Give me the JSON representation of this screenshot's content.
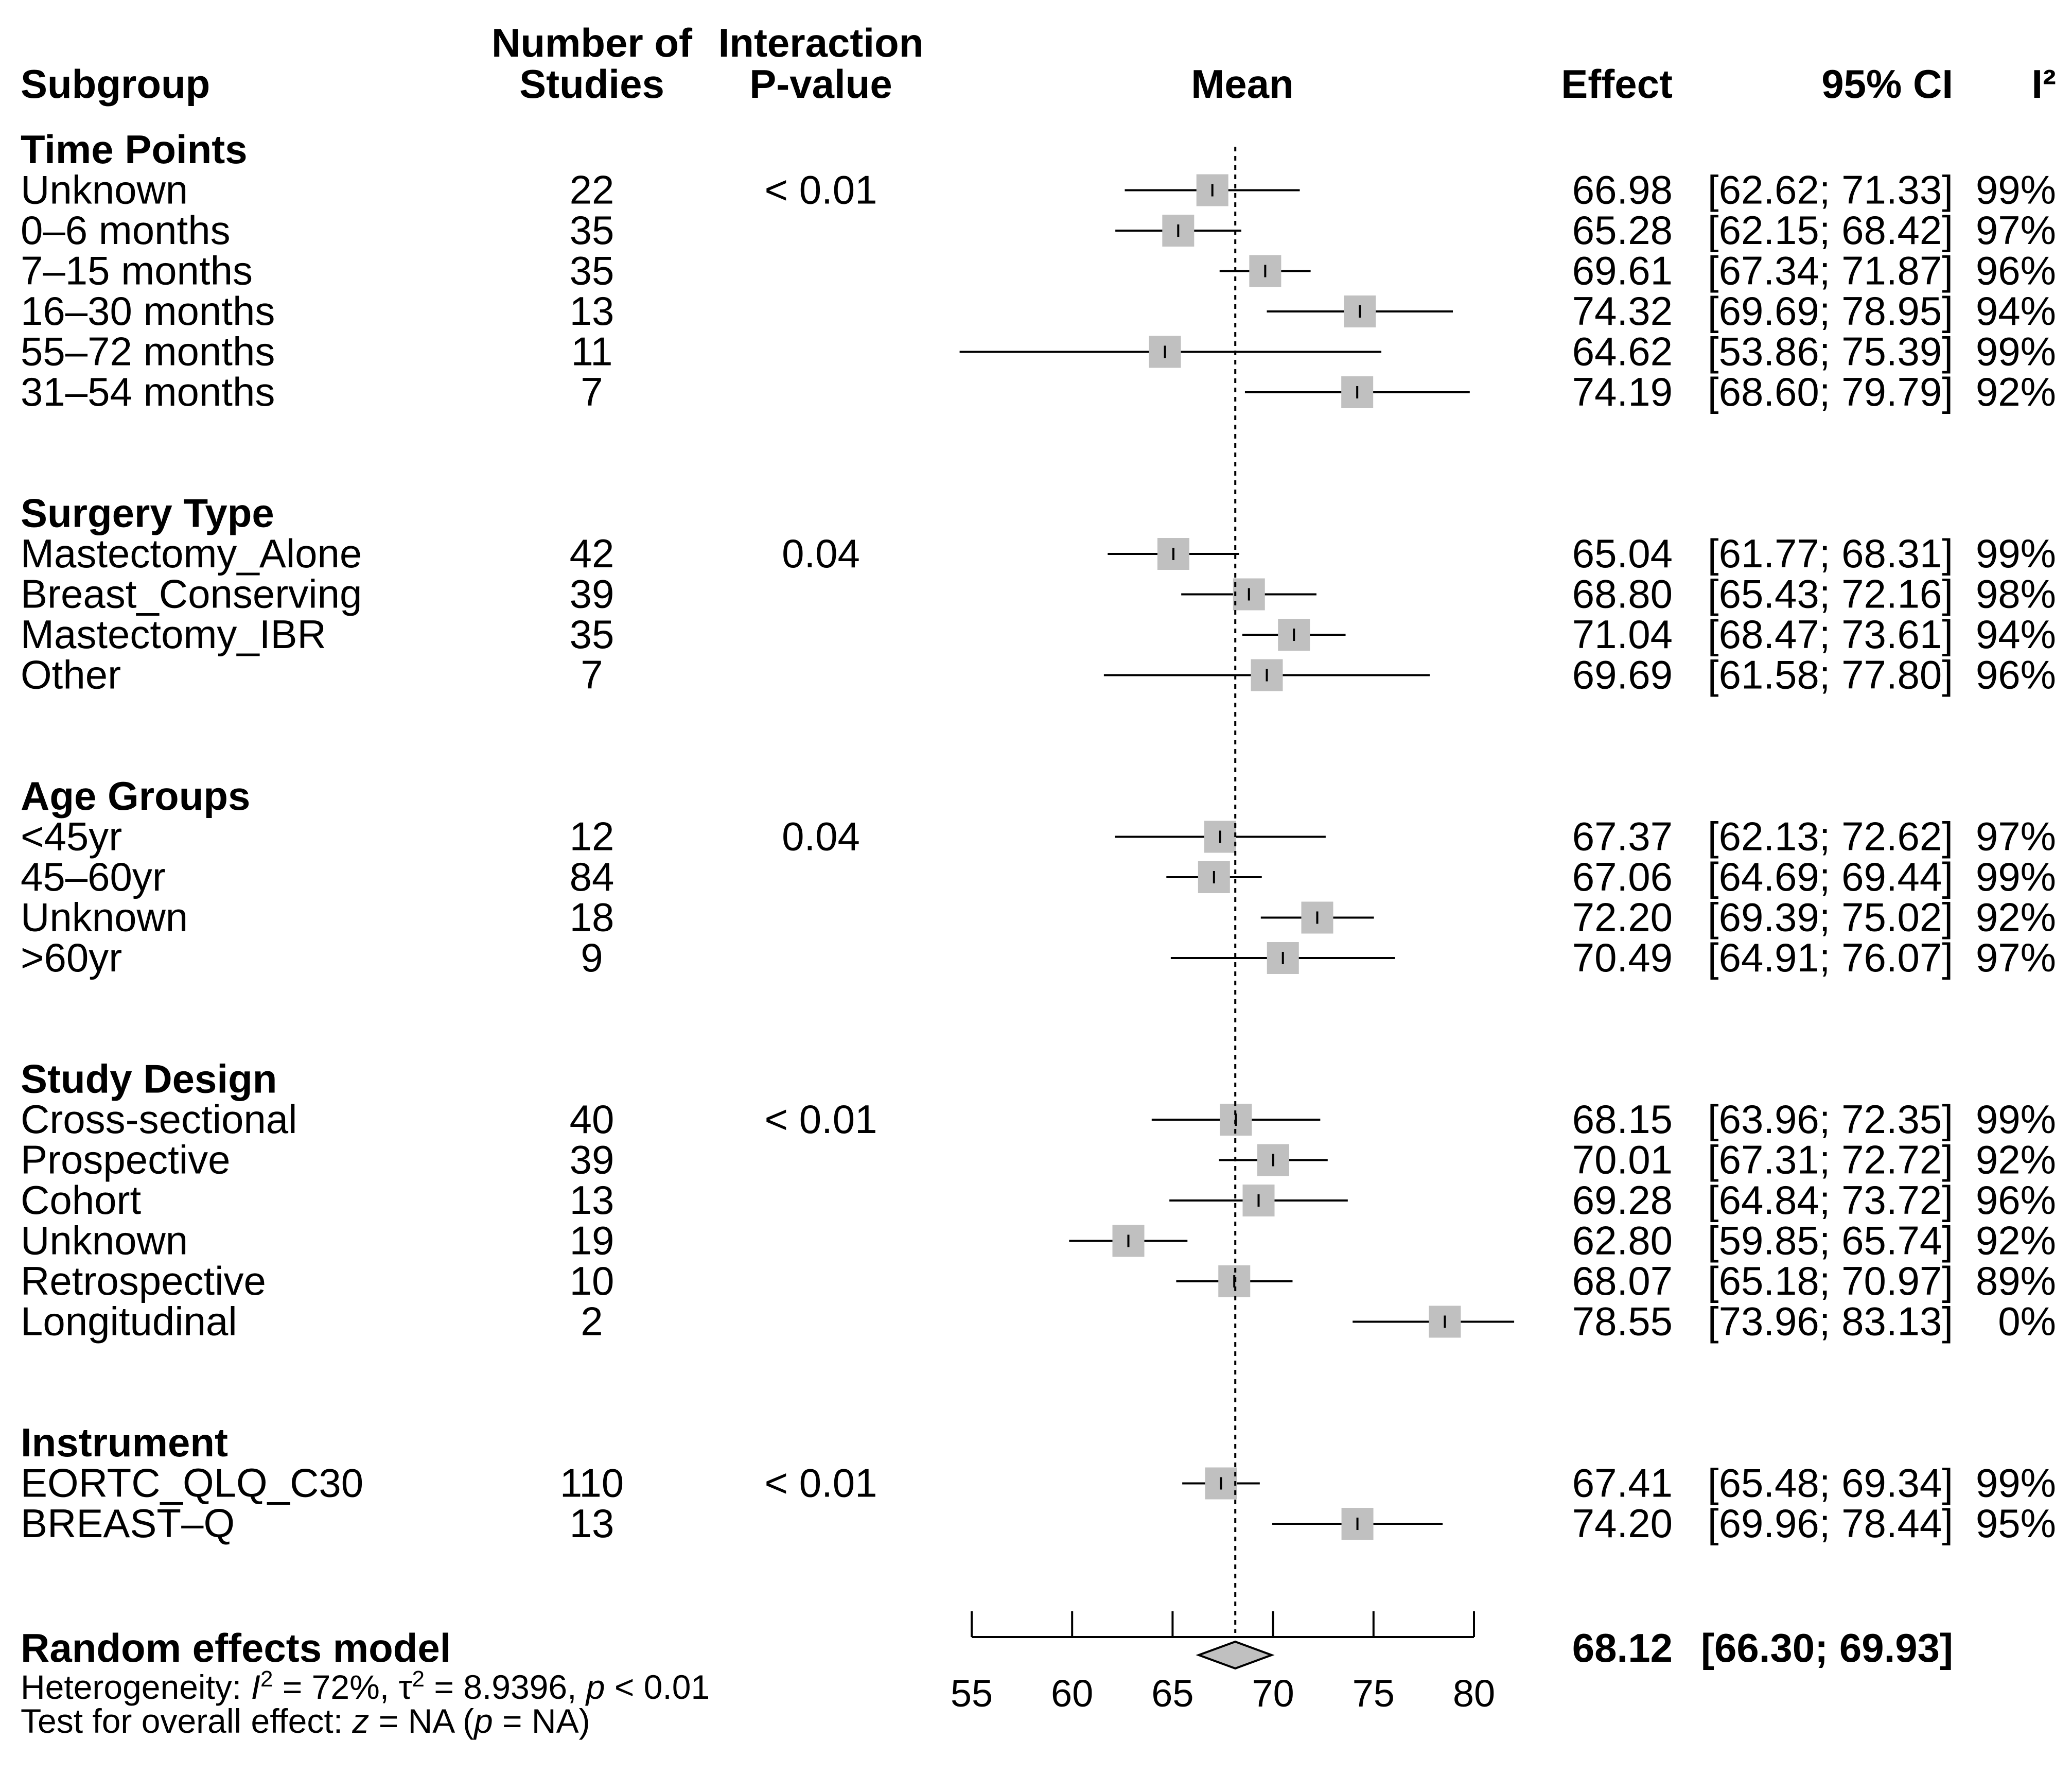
{
  "headers": {
    "subgroup": "Subgroup",
    "n_line1": "Number of",
    "n_line2": "Studies",
    "p_line1": "Interaction",
    "p_line2": "P-value",
    "mean": "Mean",
    "effect": "Effect",
    "ci": "95% CI",
    "i2": "I²"
  },
  "groups": [
    {
      "name": "Time Points",
      "pvalue": "< 0.01",
      "rows": [
        {
          "label": "Unknown",
          "n": "22",
          "effect": "66.98",
          "ci": "[62.62; 71.33]",
          "i2": "99%"
        },
        {
          "label": "0–6 months",
          "n": "35",
          "effect": "65.28",
          "ci": "[62.15; 68.42]",
          "i2": "97%"
        },
        {
          "label": "7–15 months",
          "n": "35",
          "effect": "69.61",
          "ci": "[67.34; 71.87]",
          "i2": "96%"
        },
        {
          "label": "16–30 months",
          "n": "13",
          "effect": "74.32",
          "ci": "[69.69; 78.95]",
          "i2": "94%"
        },
        {
          "label": "55–72 months",
          "n": "11",
          "effect": "64.62",
          "ci": "[53.86; 75.39]",
          "i2": "99%"
        },
        {
          "label": "31–54 months",
          "n": "7",
          "effect": "74.19",
          "ci": "[68.60; 79.79]",
          "i2": "92%"
        }
      ]
    },
    {
      "name": "Surgery Type",
      "pvalue": "0.04",
      "rows": [
        {
          "label": "Mastectomy_Alone",
          "n": "42",
          "effect": "65.04",
          "ci": "[61.77; 68.31]",
          "i2": "99%"
        },
        {
          "label": "Breast_Conserving",
          "n": "39",
          "effect": "68.80",
          "ci": "[65.43; 72.16]",
          "i2": "98%"
        },
        {
          "label": "Mastectomy_IBR",
          "n": "35",
          "effect": "71.04",
          "ci": "[68.47; 73.61]",
          "i2": "94%"
        },
        {
          "label": "Other",
          "n": "7",
          "effect": "69.69",
          "ci": "[61.58; 77.80]",
          "i2": "96%"
        }
      ]
    },
    {
      "name": "Age Groups",
      "pvalue": "0.04",
      "rows": [
        {
          "label": "<45yr",
          "n": "12",
          "effect": "67.37",
          "ci": "[62.13; 72.62]",
          "i2": "97%"
        },
        {
          "label": "45–60yr",
          "n": "84",
          "effect": "67.06",
          "ci": "[64.69; 69.44]",
          "i2": "99%"
        },
        {
          "label": "Unknown",
          "n": "18",
          "effect": "72.20",
          "ci": "[69.39; 75.02]",
          "i2": "92%"
        },
        {
          "label": ">60yr",
          "n": "9",
          "effect": "70.49",
          "ci": "[64.91; 76.07]",
          "i2": "97%"
        }
      ]
    },
    {
      "name": "Study Design",
      "pvalue": "< 0.01",
      "rows": [
        {
          "label": "Cross-sectional",
          "n": "40",
          "effect": "68.15",
          "ci": "[63.96; 72.35]",
          "i2": "99%"
        },
        {
          "label": "Prospective",
          "n": "39",
          "effect": "70.01",
          "ci": "[67.31; 72.72]",
          "i2": "92%"
        },
        {
          "label": "Cohort",
          "n": "13",
          "effect": "69.28",
          "ci": "[64.84; 73.72]",
          "i2": "96%"
        },
        {
          "label": "Unknown",
          "n": "19",
          "effect": "62.80",
          "ci": "[59.85; 65.74]",
          "i2": "92%"
        },
        {
          "label": "Retrospective",
          "n": "10",
          "effect": "68.07",
          "ci": "[65.18; 70.97]",
          "i2": "89%"
        },
        {
          "label": "Longitudinal",
          "n": "2",
          "effect": "78.55",
          "ci": "[73.96; 83.13]",
          "i2": "0%"
        }
      ]
    },
    {
      "name": "Instrument",
      "pvalue": "< 0.01",
      "rows": [
        {
          "label": "EORTC_QLQ_C30",
          "n": "110",
          "effect": "67.41",
          "ci": "[65.48; 69.34]",
          "i2": "99%"
        },
        {
          "label": "BREAST–Q",
          "n": "13",
          "effect": "74.20",
          "ci": "[69.96; 78.44]",
          "i2": "95%"
        }
      ]
    }
  ],
  "summary": {
    "label": "Random effects model",
    "effect": "68.12",
    "ci": "[66.30; 69.93]",
    "heterogeneity": {
      "prefix": "Heterogeneity: ",
      "i2_symbol": "I",
      "i2_value": " = 72%, ",
      "tau_symbol": "τ",
      "tau_value": " = 8.9396, ",
      "p_symbol": "p",
      "p_value": " < 0.01"
    },
    "overall": {
      "prefix": "Test for overall effect: ",
      "z_symbol": "z",
      "mid": " = NA (",
      "p_symbol": "p",
      "suffix": " = NA)"
    }
  },
  "chart_data": {
    "type": "forest",
    "title": "",
    "xlabel": "Mean",
    "xlim": [
      55,
      80
    ],
    "xticks": [
      55,
      60,
      65,
      70,
      75,
      80
    ],
    "reference_line": 68.12,
    "series": [
      {
        "group": "Time Points",
        "label": "Unknown",
        "mean": 66.98,
        "lower": 62.62,
        "upper": 71.33,
        "weight": 22
      },
      {
        "group": "Time Points",
        "label": "0–6 months",
        "mean": 65.28,
        "lower": 62.15,
        "upper": 68.42,
        "weight": 35
      },
      {
        "group": "Time Points",
        "label": "7–15 months",
        "mean": 69.61,
        "lower": 67.34,
        "upper": 71.87,
        "weight": 35
      },
      {
        "group": "Time Points",
        "label": "16–30 months",
        "mean": 74.32,
        "lower": 69.69,
        "upper": 78.95,
        "weight": 13
      },
      {
        "group": "Time Points",
        "label": "55–72 months",
        "mean": 64.62,
        "lower": 53.86,
        "upper": 75.39,
        "weight": 11
      },
      {
        "group": "Time Points",
        "label": "31–54 months",
        "mean": 74.19,
        "lower": 68.6,
        "upper": 79.79,
        "weight": 7
      },
      {
        "group": "Surgery Type",
        "label": "Mastectomy_Alone",
        "mean": 65.04,
        "lower": 61.77,
        "upper": 68.31,
        "weight": 42
      },
      {
        "group": "Surgery Type",
        "label": "Breast_Conserving",
        "mean": 68.8,
        "lower": 65.43,
        "upper": 72.16,
        "weight": 39
      },
      {
        "group": "Surgery Type",
        "label": "Mastectomy_IBR",
        "mean": 71.04,
        "lower": 68.47,
        "upper": 73.61,
        "weight": 35
      },
      {
        "group": "Surgery Type",
        "label": "Other",
        "mean": 69.69,
        "lower": 61.58,
        "upper": 77.8,
        "weight": 7
      },
      {
        "group": "Age Groups",
        "label": "<45yr",
        "mean": 67.37,
        "lower": 62.13,
        "upper": 72.62,
        "weight": 12
      },
      {
        "group": "Age Groups",
        "label": "45–60yr",
        "mean": 67.06,
        "lower": 64.69,
        "upper": 69.44,
        "weight": 84
      },
      {
        "group": "Age Groups",
        "label": "Unknown",
        "mean": 72.2,
        "lower": 69.39,
        "upper": 75.02,
        "weight": 18
      },
      {
        "group": "Age Groups",
        "label": ">60yr",
        "mean": 70.49,
        "lower": 64.91,
        "upper": 76.07,
        "weight": 9
      },
      {
        "group": "Study Design",
        "label": "Cross-sectional",
        "mean": 68.15,
        "lower": 63.96,
        "upper": 72.35,
        "weight": 40
      },
      {
        "group": "Study Design",
        "label": "Prospective",
        "mean": 70.01,
        "lower": 67.31,
        "upper": 72.72,
        "weight": 39
      },
      {
        "group": "Study Design",
        "label": "Cohort",
        "mean": 69.28,
        "lower": 64.84,
        "upper": 73.72,
        "weight": 13
      },
      {
        "group": "Study Design",
        "label": "Unknown",
        "mean": 62.8,
        "lower": 59.85,
        "upper": 65.74,
        "weight": 19
      },
      {
        "group": "Study Design",
        "label": "Retrospective",
        "mean": 68.07,
        "lower": 65.18,
        "upper": 70.97,
        "weight": 10
      },
      {
        "group": "Study Design",
        "label": "Longitudinal",
        "mean": 78.55,
        "lower": 73.96,
        "upper": 83.13,
        "weight": 2
      },
      {
        "group": "Instrument",
        "label": "EORTC_QLQ_C30",
        "mean": 67.41,
        "lower": 65.48,
        "upper": 69.34,
        "weight": 110
      },
      {
        "group": "Instrument",
        "label": "BREAST–Q",
        "mean": 74.2,
        "lower": 69.96,
        "upper": 78.44,
        "weight": 13
      }
    ],
    "summary": {
      "label": "Random effects model",
      "mean": 68.12,
      "lower": 66.3,
      "upper": 69.93
    },
    "colors": {
      "box": "#c0c0c0",
      "diamond": "#c0c0c0",
      "line": "#000000"
    }
  }
}
